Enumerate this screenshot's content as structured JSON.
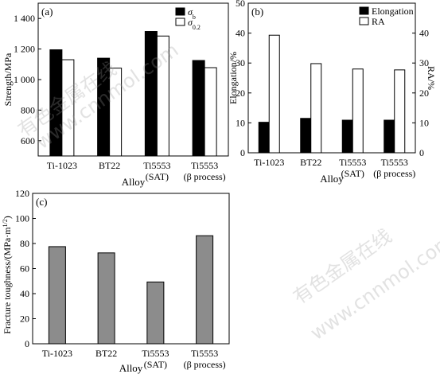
{
  "watermark": {
    "text_cn": "有色金属在线",
    "text_url": "www.cnnmol.com"
  },
  "colors": {
    "black_bar": "#000000",
    "white_bar": "#ffffff",
    "gray_bar": "#8c8c8c",
    "axis": "#000000"
  },
  "chart_data": [
    {
      "panel_label": "(a)",
      "type": "bar",
      "categories": [
        {
          "line1": "Ti-1023",
          "line2": ""
        },
        {
          "line1": "BT22",
          "line2": ""
        },
        {
          "line1": "Ti5553",
          "line2": "(SAT)"
        },
        {
          "line1": "Ti5553",
          "line2": "(β process)"
        }
      ],
      "series": [
        {
          "name": "σb",
          "name_base": "σ",
          "name_sub": "b",
          "color": "#000000",
          "values": [
            1195,
            1140,
            1315,
            1125
          ]
        },
        {
          "name": "σ0.2",
          "name_base": "σ",
          "name_sub": "0.2",
          "color": "#ffffff",
          "values": [
            1130,
            1075,
            1285,
            1078
          ]
        }
      ],
      "xlabel": "Alloy",
      "ylabel": "Strength/MPa",
      "ylim": [
        500,
        1500
      ],
      "yticks": [
        600,
        800,
        1000,
        1200,
        1400
      ],
      "ytick_labels": [
        "600",
        "800",
        "1 000",
        "1 200",
        "1 400"
      ],
      "legend_position": "top-right",
      "grid": false
    },
    {
      "panel_label": "(b)",
      "type": "bar",
      "categories": [
        {
          "line1": "Ti-1023",
          "line2": ""
        },
        {
          "line1": "BT22",
          "line2": ""
        },
        {
          "line1": "Ti5553",
          "line2": "(SAT)"
        },
        {
          "line1": "Ti5553",
          "line2": "(β process)"
        }
      ],
      "series": [
        {
          "name": "Elongation",
          "color": "#000000",
          "values": [
            10.2,
            11.5,
            10.9,
            10.9
          ]
        },
        {
          "name": "RA",
          "color": "#ffffff",
          "values": [
            39.3,
            29.8,
            28.0,
            27.7
          ]
        }
      ],
      "xlabel": "Alloy",
      "ylabel": "Elongation/%",
      "ylabel_right": "RA/%",
      "ylim": [
        0,
        50
      ],
      "yticks": [
        0,
        10,
        20,
        30,
        40,
        50
      ],
      "ytick_labels": [
        "0",
        "10",
        "20",
        "30",
        "40",
        "50"
      ],
      "yticks_right": [
        0,
        10,
        20,
        30,
        40
      ],
      "ytick_labels_right": [
        "0",
        "10",
        "20",
        "30",
        "40"
      ],
      "legend_position": "top-right",
      "grid": false
    },
    {
      "panel_label": "(c)",
      "type": "bar",
      "categories": [
        {
          "line1": "Ti-1023",
          "line2": ""
        },
        {
          "line1": "BT22",
          "line2": ""
        },
        {
          "line1": "Ti5553",
          "line2": "(SAT)"
        },
        {
          "line1": "Ti5553",
          "line2": "(β process)"
        }
      ],
      "series": [
        {
          "name": "",
          "color": "#8c8c8c",
          "values": [
            77.5,
            72.5,
            49.3,
            86.2
          ]
        }
      ],
      "xlabel": "Alloy",
      "ylabel": "Fracture toughness/(MPa·m",
      "ylabel_sup": "1/2",
      "ylabel_tail": ")",
      "ylim": [
        0,
        120
      ],
      "yticks": [
        0,
        20,
        40,
        60,
        80,
        100,
        120
      ],
      "ytick_labels": [
        "0",
        "20",
        "40",
        "60",
        "80",
        "100",
        "120"
      ],
      "grid": false
    }
  ]
}
